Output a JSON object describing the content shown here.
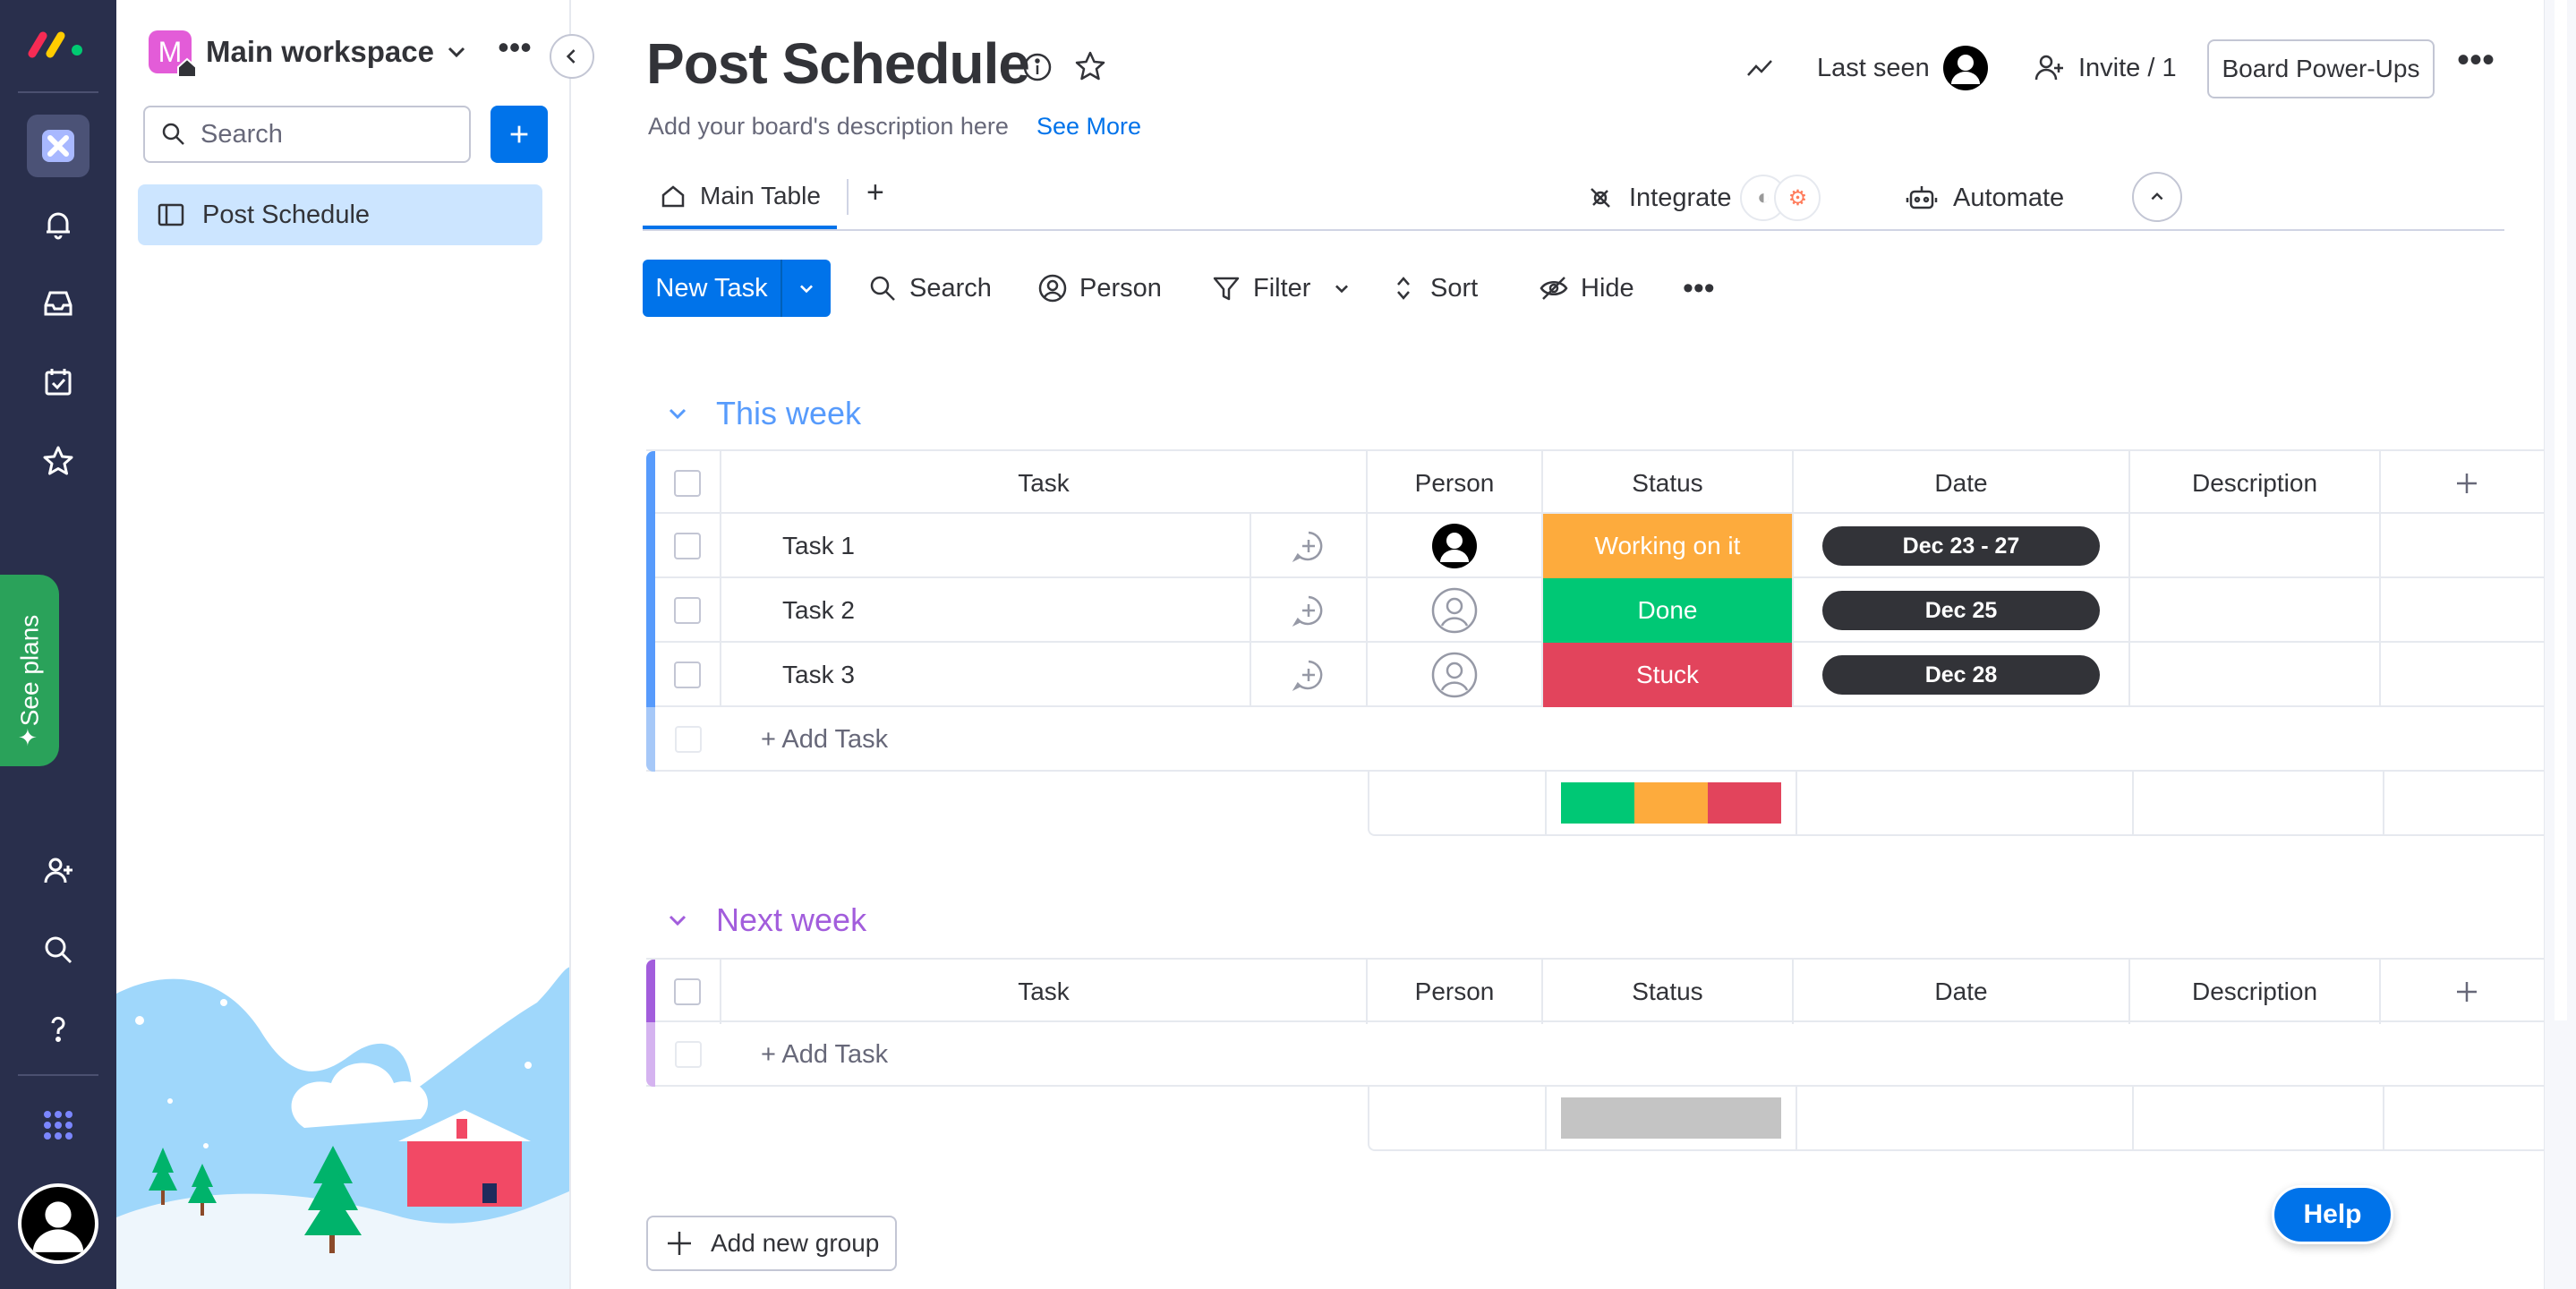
{
  "workspace": {
    "badge_letter": "M",
    "name": "Main workspace",
    "search_placeholder": "Search",
    "board_item": "Post Schedule"
  },
  "rail": {
    "see_plans": "See plans"
  },
  "board": {
    "title": "Post Schedule",
    "description": "Add your board's description here",
    "see_more": "See More",
    "last_seen": "Last seen",
    "invite": "Invite / 1",
    "power_ups": "Board Power-Ups"
  },
  "tabs": {
    "main_table": "Main Table",
    "add": "+",
    "integrate": "Integrate",
    "automate": "Automate"
  },
  "toolbar": {
    "new_task": "New Task",
    "search": "Search",
    "person": "Person",
    "filter": "Filter",
    "sort": "Sort",
    "hide": "Hide"
  },
  "columns": {
    "task": "Task",
    "person": "Person",
    "status": "Status",
    "date": "Date",
    "description": "Description"
  },
  "groups": [
    {
      "title": "This week",
      "color": "#579bfc",
      "rows": [
        {
          "task": "Task 1",
          "status": "Working on it",
          "status_color": "#fdab3d",
          "date": "Dec 23 - 27"
        },
        {
          "task": "Task 2",
          "status": "Done",
          "status_color": "#00c875",
          "date": "Dec 25"
        },
        {
          "task": "Task 3",
          "status": "Stuck",
          "status_color": "#e2445c",
          "date": "Dec 28"
        }
      ],
      "add_task": "+ Add Task"
    },
    {
      "title": "Next week",
      "color": "#a25ddc",
      "rows": [],
      "add_task": "+ Add Task"
    }
  ],
  "add_group": "Add new group",
  "help": "Help",
  "colors": {
    "primary": "#0073ea",
    "rail": "#292f4c",
    "selected": "#cce5ff",
    "done": "#00c875",
    "working": "#fdab3d",
    "stuck": "#e2445c"
  }
}
